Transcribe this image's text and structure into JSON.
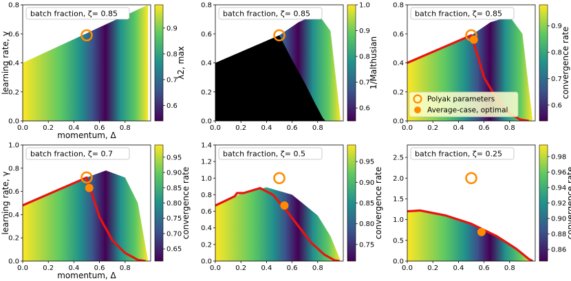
{
  "figure": {
    "ylabel": "learning rate, γ",
    "xlabel": "momentum, Δ",
    "legend": {
      "polyak": "Polyak parameters",
      "optimal": "Average-case, optimal"
    }
  },
  "colors": {
    "polyak_marker": "#ff8c00",
    "optimal_marker": "#ff8c00",
    "optimal_curve": "#e8140f",
    "unstable_region": "#000000",
    "colormap": [
      "#440154",
      "#3b528b",
      "#21918c",
      "#5ec962",
      "#fde725"
    ]
  },
  "chart_data": [
    {
      "type": "heatmap",
      "box_label": "batch fraction, ζ=  0.85",
      "zeta": 0.85,
      "xlim": [
        0,
        1
      ],
      "ylim": [
        0,
        0.8
      ],
      "xticks": [
        "0.0",
        "0.2",
        "0.4",
        "0.6",
        "0.8"
      ],
      "yticks": [
        "0.0",
        "0.2",
        "0.4",
        "0.6",
        "0.8"
      ],
      "show_ylabel": true,
      "show_xlabel": true,
      "colorbar": {
        "label": "λ2, max",
        "ticks": [
          "0.6",
          "0.7",
          "0.8",
          "0.9"
        ],
        "range": [
          0.54,
          0.99
        ]
      },
      "upper_boundary": [
        [
          0,
          0.4
        ],
        [
          0.98,
          0.8
        ]
      ],
      "polyak": [
        0.5,
        0.59
      ],
      "optimal": null,
      "curve": [],
      "mask_left": false,
      "legend": false
    },
    {
      "type": "heatmap",
      "box_label": "batch fraction, ζ=  0.85",
      "zeta": 0.85,
      "xlim": [
        0,
        1
      ],
      "ylim": [
        0,
        0.8
      ],
      "xticks": [
        "0.0",
        "0.2",
        "0.4",
        "0.6",
        "0.8"
      ],
      "yticks": [
        "0.0",
        "0.2",
        "0.4",
        "0.6",
        "0.8"
      ],
      "show_ylabel": false,
      "show_xlabel": false,
      "colorbar": {
        "label": "1/Malthusian",
        "ticks": [
          "0.6",
          "0.7",
          "0.8",
          "0.9",
          "1.0"
        ],
        "range": [
          0.55,
          1.0
        ]
      },
      "upper_boundary": [
        [
          0,
          0.4
        ],
        [
          0.5,
          0.59
        ],
        [
          0.65,
          0.68
        ],
        [
          0.8,
          0.74
        ],
        [
          0.9,
          0.62
        ],
        [
          0.98,
          0.0
        ]
      ],
      "polyak": [
        0.5,
        0.59
      ],
      "optimal": null,
      "curve": [],
      "mask_left": true,
      "legend": false
    },
    {
      "type": "heatmap",
      "box_label": "batch fraction, ζ=  0.85",
      "zeta": 0.85,
      "xlim": [
        0,
        1
      ],
      "ylim": [
        0,
        0.8
      ],
      "xticks": [
        "0.0",
        "0.2",
        "0.4",
        "0.6",
        "0.8"
      ],
      "yticks": [
        "0.0",
        "0.2",
        "0.4",
        "0.6",
        "0.8"
      ],
      "show_ylabel": false,
      "show_xlabel": false,
      "colorbar": {
        "label": "convergence rate",
        "ticks": [
          "0.6",
          "0.7",
          "0.8",
          "0.9"
        ],
        "range": [
          0.54,
          0.98
        ]
      },
      "upper_boundary": [
        [
          0,
          0.4
        ],
        [
          0.5,
          0.59
        ],
        [
          0.65,
          0.68
        ],
        [
          0.8,
          0.72
        ],
        [
          0.9,
          0.6
        ],
        [
          0.98,
          0.0
        ]
      ],
      "polyak": [
        0.5,
        0.59
      ],
      "optimal": [
        0.52,
        0.56
      ],
      "curve": [
        [
          0,
          0.4
        ],
        [
          0.5,
          0.59
        ],
        [
          0.55,
          0.45
        ],
        [
          0.6,
          0.3
        ],
        [
          0.7,
          0.15
        ],
        [
          0.8,
          0.05
        ],
        [
          0.88,
          0.01
        ],
        [
          0.95,
          0.0
        ]
      ],
      "mask_left": false,
      "legend": true
    },
    {
      "type": "heatmap",
      "box_label": "batch fraction, ζ=  0.7",
      "zeta": 0.7,
      "xlim": [
        0,
        1
      ],
      "ylim": [
        0,
        1.0
      ],
      "xticks": [
        "0.0",
        "0.2",
        "0.4",
        "0.6",
        "0.8"
      ],
      "yticks": [
        "0.0",
        "0.2",
        "0.4",
        "0.6",
        "0.8",
        "1.0"
      ],
      "show_ylabel": true,
      "show_xlabel": true,
      "colorbar": {
        "label": "convergence rate",
        "ticks": [
          "0.65",
          "0.70",
          "0.75",
          "0.80",
          "0.85",
          "0.90",
          "0.95"
        ],
        "range": [
          0.61,
          0.99
        ]
      },
      "upper_boundary": [
        [
          0,
          0.48
        ],
        [
          0.5,
          0.72
        ],
        [
          0.65,
          0.78
        ],
        [
          0.8,
          0.72
        ],
        [
          0.9,
          0.5
        ],
        [
          0.98,
          0.0
        ]
      ],
      "polyak": [
        0.5,
        0.72
      ],
      "optimal": [
        0.52,
        0.63
      ],
      "curve": [
        [
          0,
          0.48
        ],
        [
          0.5,
          0.72
        ],
        [
          0.55,
          0.55
        ],
        [
          0.6,
          0.38
        ],
        [
          0.7,
          0.18
        ],
        [
          0.8,
          0.07
        ],
        [
          0.9,
          0.01
        ],
        [
          0.96,
          0.0
        ]
      ],
      "mask_left": false,
      "legend": false
    },
    {
      "type": "heatmap",
      "box_label": "batch fraction, ζ=  0.5",
      "zeta": 0.5,
      "xlim": [
        0,
        1
      ],
      "ylim": [
        0,
        1.4
      ],
      "xticks": [
        "0.0",
        "0.2",
        "0.4",
        "0.6",
        "0.8"
      ],
      "yticks": [
        "0.0",
        "0.2",
        "0.4",
        "0.6",
        "0.8",
        "1.0",
        "1.2",
        "1.4"
      ],
      "show_ylabel": false,
      "show_xlabel": false,
      "colorbar": {
        "label": "convergence rate",
        "ticks": [
          "0.75",
          "0.80",
          "0.85",
          "0.90",
          "0.95"
        ],
        "range": [
          0.71,
          0.99
        ]
      },
      "upper_boundary": [
        [
          0,
          0.67
        ],
        [
          0.15,
          0.78
        ],
        [
          0.2,
          0.81
        ],
        [
          0.4,
          0.89
        ],
        [
          0.6,
          0.8
        ],
        [
          0.8,
          0.55
        ],
        [
          0.9,
          0.3
        ],
        [
          0.98,
          0.0
        ]
      ],
      "polyak": [
        0.5,
        1.0
      ],
      "optimal": [
        0.54,
        0.67
      ],
      "curve": [
        [
          0,
          0.67
        ],
        [
          0.15,
          0.78
        ],
        [
          0.17,
          0.82
        ],
        [
          0.22,
          0.82
        ],
        [
          0.35,
          0.88
        ],
        [
          0.45,
          0.8
        ],
        [
          0.55,
          0.62
        ],
        [
          0.65,
          0.42
        ],
        [
          0.75,
          0.22
        ],
        [
          0.85,
          0.08
        ],
        [
          0.93,
          0.01
        ],
        [
          0.97,
          0.0
        ]
      ],
      "mask_left": false,
      "legend": false
    },
    {
      "type": "heatmap",
      "box_label": "batch fraction, ζ=  0.25",
      "zeta": 0.25,
      "xlim": [
        0,
        1
      ],
      "ylim": [
        0,
        2.8
      ],
      "xticks": [
        "0.0",
        "0.2",
        "0.4",
        "0.6",
        "0.8"
      ],
      "yticks": [
        "0.0",
        "0.5",
        "1.0",
        "1.5",
        "2.0",
        "2.5"
      ],
      "show_ylabel": false,
      "show_xlabel": false,
      "colorbar": {
        "label": "convergence rate",
        "ticks": [
          "0.86",
          "0.88",
          "0.90",
          "0.92",
          "0.94",
          "0.96",
          "0.98"
        ],
        "range": [
          0.845,
          0.995
        ]
      },
      "upper_boundary": [
        [
          0,
          1.2
        ],
        [
          0.1,
          1.22
        ],
        [
          0.3,
          1.1
        ],
        [
          0.5,
          0.9
        ],
        [
          0.7,
          0.6
        ],
        [
          0.85,
          0.3
        ],
        [
          0.95,
          0.05
        ],
        [
          0.98,
          0.0
        ]
      ],
      "polyak": [
        0.5,
        2.0
      ],
      "optimal": [
        0.58,
        0.7
      ],
      "curve": [
        [
          0,
          1.2
        ],
        [
          0.1,
          1.22
        ],
        [
          0.3,
          1.1
        ],
        [
          0.5,
          0.9
        ],
        [
          0.7,
          0.6
        ],
        [
          0.85,
          0.3
        ],
        [
          0.95,
          0.05
        ],
        [
          0.98,
          0.0
        ]
      ],
      "mask_left": false,
      "legend": false
    }
  ]
}
